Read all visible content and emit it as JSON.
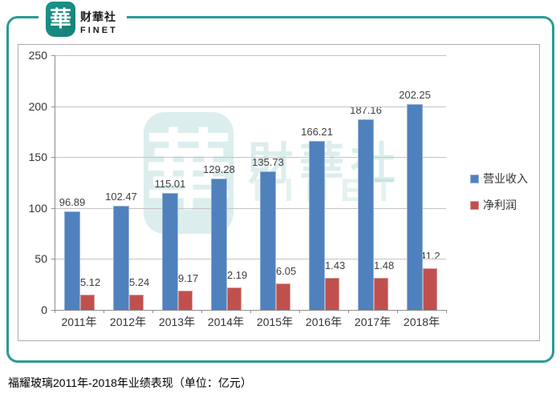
{
  "logo": {
    "seal_char": "華",
    "name_cn": "财華社",
    "name_en": "FINET"
  },
  "watermark": {
    "seal_char": "華",
    "text_cn": "財華社",
    "text_en": "FINET"
  },
  "caption": "福耀玻璃2011年-2018年业绩表现（单位：亿元）",
  "colors": {
    "frame_teal": "#2a9c92",
    "revenue_bar": "#4f81bd",
    "revenue_bar_border": "#95b3d7",
    "profit_bar": "#c0504d",
    "profit_bar_border": "#d99694",
    "gridline": "#c3c3c3",
    "axis": "#8e8e8e"
  },
  "chart_data": {
    "type": "bar",
    "title": "福耀玻璃2011年-2018年业绩表现（单位：亿元）",
    "categories": [
      "2011年",
      "2012年",
      "2013年",
      "2014年",
      "2015年",
      "2016年",
      "2017年",
      "2018年"
    ],
    "series": [
      {
        "name": "营业收入",
        "color": "#4f81bd",
        "values": [
          96.89,
          102.47,
          115.01,
          129.28,
          135.73,
          166.21,
          187.16,
          202.25
        ]
      },
      {
        "name": "净利润",
        "color": "#c0504d",
        "values": [
          15.12,
          15.24,
          19.17,
          22.19,
          26.05,
          31.43,
          31.48,
          41.2
        ]
      }
    ],
    "ylim": [
      0,
      250
    ],
    "yticks": [
      0,
      50,
      100,
      150,
      200,
      250
    ],
    "xlabel": "",
    "ylabel": "",
    "grid": true,
    "legend_position": "right",
    "unit": "亿元"
  }
}
